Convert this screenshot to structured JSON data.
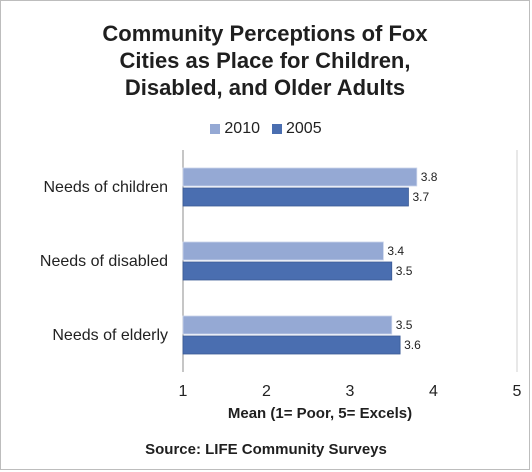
{
  "chart_data": {
    "type": "bar",
    "orientation": "horizontal",
    "title_lines": [
      "Community Perceptions of Fox",
      "Cities as Place for Children,",
      "Disabled, and Older Adults"
    ],
    "categories": [
      "Needs of children",
      "Needs of disabled",
      "Needs of elderly"
    ],
    "series": [
      {
        "name": "2010",
        "values": [
          3.8,
          3.4,
          3.5
        ],
        "color": "#95a9d4"
      },
      {
        "name": "2005",
        "values": [
          3.7,
          3.5,
          3.6
        ],
        "color": "#4a6eb0"
      }
    ],
    "xlim": [
      1,
      5
    ],
    "xticks": [
      "1",
      "2",
      "3",
      "4",
      "5"
    ],
    "xlabel": "Mean (1= Poor, 5= Excels)",
    "legend_position": "top",
    "grid": false,
    "source": "Source:  LIFE Community Surveys"
  }
}
